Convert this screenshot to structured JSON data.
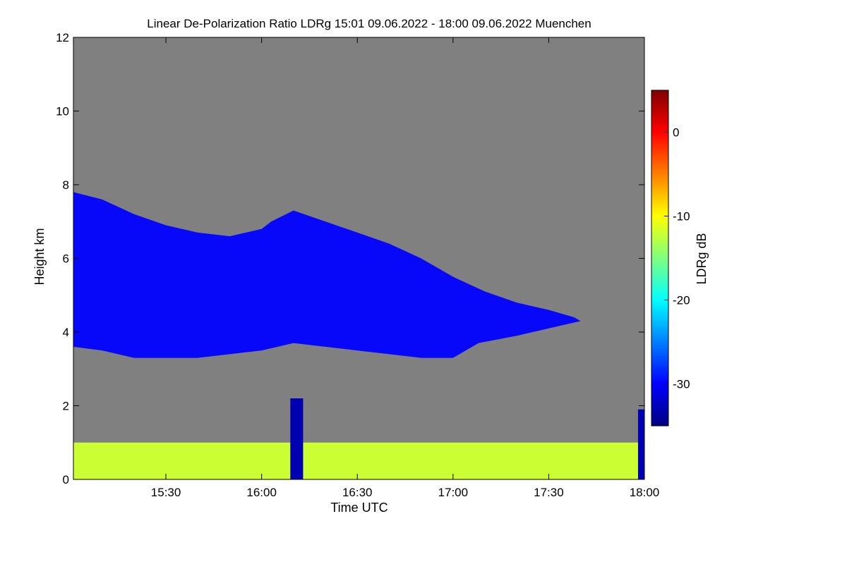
{
  "chart_data": {
    "type": "heatmap",
    "title": "Linear De-Polarization Ratio LDRg   15:01 09.06.2022 - 18:00 09.06.2022 Muenchen",
    "xlabel": "Time UTC",
    "ylabel": "Height km",
    "x_unit": "minutes after 15:00 UTC",
    "xlim": [
      1,
      180
    ],
    "ylim": [
      0,
      12
    ],
    "x_ticks": [
      {
        "value": 30,
        "label": "15:30"
      },
      {
        "value": 60,
        "label": "16:00"
      },
      {
        "value": 90,
        "label": "16:30"
      },
      {
        "value": 120,
        "label": "17:00"
      },
      {
        "value": 150,
        "label": "17:30"
      },
      {
        "value": 180,
        "label": "18:00"
      }
    ],
    "y_ticks": [
      {
        "value": 0,
        "label": "0"
      },
      {
        "value": 2,
        "label": "2"
      },
      {
        "value": 4,
        "label": "4"
      },
      {
        "value": 6,
        "label": "6"
      },
      {
        "value": 8,
        "label": "8"
      },
      {
        "value": 10,
        "label": "10"
      },
      {
        "value": 12,
        "label": "12"
      }
    ],
    "no_signal_color": "#808080",
    "colorbar": {
      "label": "LDRg dB",
      "range": [
        -35,
        5
      ],
      "ticks": [
        {
          "value": 0,
          "label": "0"
        },
        {
          "value": -10,
          "label": "-10"
        },
        {
          "value": -20,
          "label": "-20"
        },
        {
          "value": -30,
          "label": "-30"
        }
      ],
      "colormap": [
        "#00007f",
        "#0000ff",
        "#007fff",
        "#00ffff",
        "#7fff7f",
        "#ffff00",
        "#ff7f00",
        "#ff0000",
        "#7f0000"
      ]
    },
    "regions": [
      {
        "name": "mid-level ice cloud",
        "ldr_db": -30,
        "top": [
          [
            1,
            7.8
          ],
          [
            10,
            7.6
          ],
          [
            20,
            7.2
          ],
          [
            30,
            6.9
          ],
          [
            40,
            6.7
          ],
          [
            50,
            6.6
          ],
          [
            60,
            6.8
          ],
          [
            63,
            7.0
          ],
          [
            70,
            7.3
          ],
          [
            80,
            7.0
          ],
          [
            90,
            6.7
          ],
          [
            100,
            6.4
          ],
          [
            110,
            6.0
          ],
          [
            120,
            5.5
          ],
          [
            130,
            5.1
          ],
          [
            140,
            4.8
          ],
          [
            150,
            4.6
          ],
          [
            158,
            4.4
          ],
          [
            160,
            4.3
          ]
        ],
        "base": [
          [
            1,
            3.6
          ],
          [
            10,
            3.5
          ],
          [
            20,
            3.3
          ],
          [
            30,
            3.3
          ],
          [
            40,
            3.3
          ],
          [
            50,
            3.4
          ],
          [
            60,
            3.5
          ],
          [
            70,
            3.7
          ],
          [
            80,
            3.6
          ],
          [
            90,
            3.5
          ],
          [
            100,
            3.4
          ],
          [
            110,
            3.3
          ],
          [
            120,
            3.3
          ],
          [
            128,
            3.7
          ],
          [
            140,
            3.9
          ],
          [
            150,
            4.1
          ],
          [
            160,
            4.3
          ]
        ]
      },
      {
        "name": "boundary layer aerosol",
        "ldr_db": -12,
        "top_km": 1.0,
        "base_km": 0.0,
        "x_range": [
          1,
          180
        ]
      },
      {
        "name": "precipitation streak",
        "ldr_db": -33,
        "x_range": [
          69,
          73
        ],
        "top_km": 2.2,
        "base_km": 0.0
      },
      {
        "name": "precipitation streak",
        "ldr_db": -33,
        "x_range": [
          178,
          180
        ],
        "top_km": 1.9,
        "base_km": 0.0
      }
    ]
  }
}
